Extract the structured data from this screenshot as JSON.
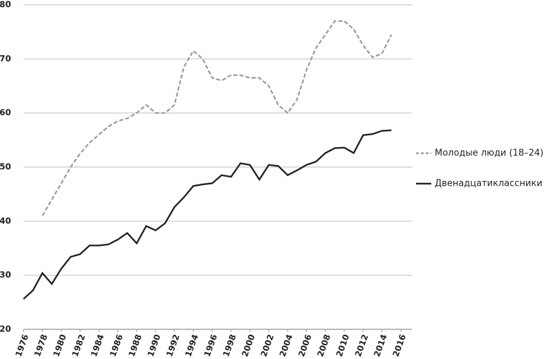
{
  "chart_data": {
    "type": "line",
    "x": [
      1976,
      1977,
      1978,
      1979,
      1980,
      1981,
      1982,
      1983,
      1984,
      1985,
      1986,
      1987,
      1988,
      1989,
      1990,
      1991,
      1992,
      1993,
      1994,
      1995,
      1996,
      1997,
      1998,
      1999,
      2000,
      2001,
      2002,
      2003,
      2004,
      2005,
      2006,
      2007,
      2008,
      2009,
      2010,
      2011,
      2012,
      2013,
      2014,
      2015
    ],
    "series": [
      {
        "name": "Молодые люди (18–24)",
        "color": "#9a9a9a",
        "dashed": true,
        "values": [
          null,
          null,
          41,
          44,
          47,
          50,
          52.5,
          54.5,
          56,
          57.5,
          58.5,
          59,
          60,
          61.5,
          60,
          60,
          61.5,
          68.5,
          71.5,
          70,
          66.5,
          66,
          67,
          67,
          66.5,
          66.5,
          65,
          61.5,
          60,
          62.5,
          68,
          72,
          74.5,
          77,
          77,
          75.5,
          72.5,
          70.3,
          71,
          74.5
        ]
      },
      {
        "name": "Двенадцатиклассники",
        "color": "#222222",
        "dashed": false,
        "values": [
          25.6,
          27.2,
          30.4,
          28.4,
          31.2,
          33.4,
          33.9,
          35.5,
          35.5,
          35.7,
          36.6,
          37.8,
          35.9,
          39.1,
          38.3,
          39.6,
          42.6,
          44.4,
          46.5,
          46.8,
          47,
          48.5,
          48.2,
          50.7,
          50.4,
          47.7,
          50.4,
          50.2,
          48.5,
          49.4,
          50.4,
          51,
          52.6,
          53.5,
          53.6,
          52.6,
          55.9,
          56.1,
          56.7,
          56.8
        ]
      }
    ],
    "xlim": [
      1976,
      2016
    ],
    "xticks": [
      1976,
      1978,
      1980,
      1982,
      1984,
      1986,
      1988,
      1990,
      1992,
      1994,
      1996,
      1998,
      2000,
      2002,
      2004,
      2006,
      2008,
      2010,
      2012,
      2014,
      2016
    ],
    "ylim": [
      20,
      80
    ],
    "yticks": [
      20,
      30,
      40,
      50,
      60,
      70,
      80
    ],
    "grid": true,
    "legend": "right"
  }
}
